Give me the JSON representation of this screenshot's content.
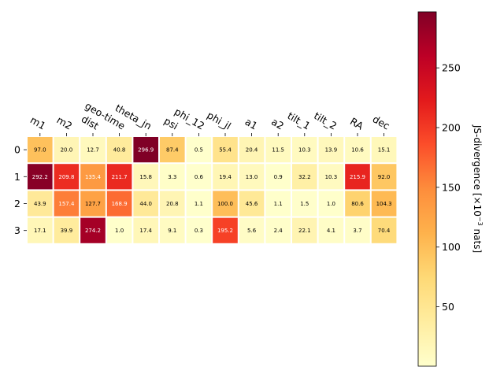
{
  "chart_data": {
    "type": "heatmap",
    "title": "",
    "columns": [
      "m1",
      "m2",
      "dist",
      "geo-time",
      "theta_jn",
      "psi",
      "phi_12",
      "phi_jl",
      "a1",
      "a2",
      "tilt_1",
      "tilt_2",
      "RA",
      "dec"
    ],
    "rows": [
      "0",
      "1",
      "2",
      "3"
    ],
    "values": [
      [
        97.0,
        20.0,
        12.7,
        40.8,
        296.9,
        87.4,
        0.5,
        55.4,
        20.4,
        11.5,
        10.3,
        13.9,
        10.6,
        15.1
      ],
      [
        292.2,
        209.8,
        135.4,
        211.7,
        15.8,
        3.3,
        0.6,
        19.4,
        13.0,
        0.9,
        32.2,
        10.3,
        215.9,
        92.0
      ],
      [
        43.9,
        157.4,
        127.7,
        168.9,
        44.0,
        20.8,
        1.1,
        100.0,
        45.6,
        1.1,
        1.5,
        1.0,
        80.6,
        104.3
      ],
      [
        17.1,
        39.9,
        274.2,
        1.0,
        17.4,
        9.1,
        0.3,
        195.2,
        5.6,
        2.4,
        22.1,
        4.1,
        3.7,
        70.4
      ]
    ],
    "value_labels": [
      [
        "97.0",
        "20.0",
        "12.7",
        "40.8",
        "296.9",
        "87.4",
        "0.5",
        "55.4",
        "20.4",
        "11.5",
        "10.3",
        "13.9",
        "10.6",
        "15.1"
      ],
      [
        "292.2",
        "209.8",
        "135.4",
        "211.7",
        "15.8",
        "3.3",
        "0.6",
        "19.4",
        "13.0",
        "0.9",
        "32.2",
        "10.3",
        "215.9",
        "92.0"
      ],
      [
        "43.9",
        "157.4",
        "127.7",
        "168.9",
        "44.0",
        "20.8",
        "1.1",
        "100.0",
        "45.6",
        "1.1",
        "1.5",
        "1.0",
        "80.6",
        "104.3"
      ],
      [
        "17.1",
        "39.9",
        "274.2",
        "1.0",
        "17.4",
        "9.1",
        "0.3",
        "195.2",
        "5.6",
        "2.4",
        "22.1",
        "4.1",
        "3.7",
        "70.4"
      ]
    ],
    "colormap": "YlOrRd",
    "color_range": [
      0.3,
      296.9
    ],
    "colorbar": {
      "label_prefix": "JS-divergence [×10",
      "label_exponent": "−3",
      "label_suffix": " nats]",
      "ticks": [
        50,
        100,
        150,
        200,
        250
      ],
      "tick_labels": [
        "50",
        "100",
        "150",
        "200",
        "250"
      ],
      "position": "right"
    },
    "grid": false
  }
}
